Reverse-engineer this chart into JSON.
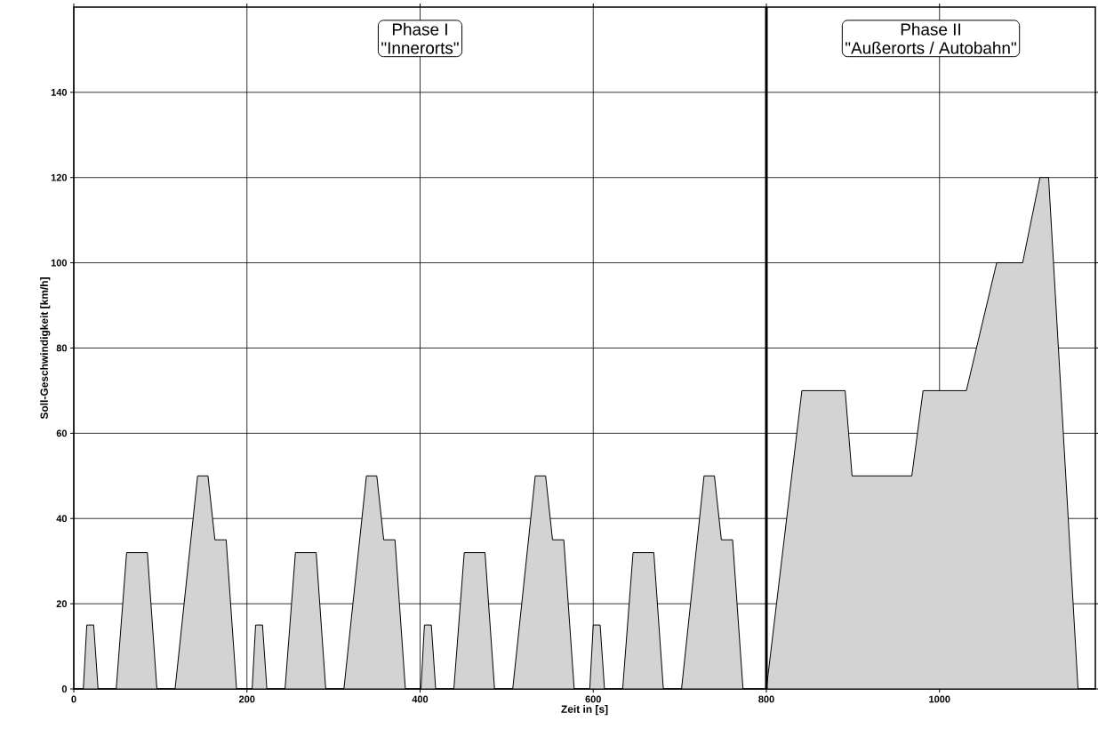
{
  "chart_data": {
    "type": "area",
    "xlabel": "Zeit in [s]",
    "ylabel": "Soll-Geschwindigkeit [km/h]",
    "xlim": [
      0,
      1180
    ],
    "ylim": [
      0,
      160
    ],
    "xticks": [
      0,
      200,
      400,
      600,
      800,
      1000
    ],
    "yticks": [
      0,
      20,
      40,
      60,
      80,
      100,
      120,
      140
    ],
    "grid": true,
    "ref_lines": [
      {
        "axis": "x",
        "value": 800
      }
    ],
    "annotations": [
      "Phase I",
      "\"Innerorts\"",
      "Phase II",
      "\"Außerorts / Autobahn\""
    ],
    "series": [
      {
        "color": "#d3d3d3",
        "x": [
          0,
          11,
          15,
          23,
          28,
          49,
          61,
          85,
          96,
          117,
          143,
          155,
          163,
          176,
          188,
          195,
          206,
          210,
          218,
          223,
          244,
          256,
          280,
          291,
          312,
          338,
          350,
          358,
          371,
          383,
          390,
          401,
          405,
          413,
          418,
          439,
          451,
          475,
          486,
          507,
          533,
          545,
          553,
          566,
          578,
          585,
          596,
          600,
          608,
          613,
          634,
          646,
          670,
          681,
          702,
          728,
          740,
          748,
          761,
          773,
          780,
          800,
          841,
          891,
          899,
          968,
          981,
          1031,
          1066,
          1096,
          1116,
          1126,
          1160,
          1180
        ],
        "values": [
          0,
          0,
          15,
          15,
          0,
          0,
          32,
          32,
          0,
          0,
          50,
          50,
          35,
          35,
          0,
          0,
          0,
          15,
          15,
          0,
          0,
          32,
          32,
          0,
          0,
          50,
          50,
          35,
          35,
          0,
          0,
          0,
          15,
          15,
          0,
          0,
          32,
          32,
          0,
          0,
          50,
          50,
          35,
          35,
          0,
          0,
          0,
          15,
          15,
          0,
          0,
          32,
          32,
          0,
          0,
          50,
          50,
          35,
          35,
          0,
          0,
          0,
          70,
          70,
          50,
          50,
          70,
          70,
          100,
          100,
          120,
          120,
          0,
          0
        ]
      }
    ]
  }
}
